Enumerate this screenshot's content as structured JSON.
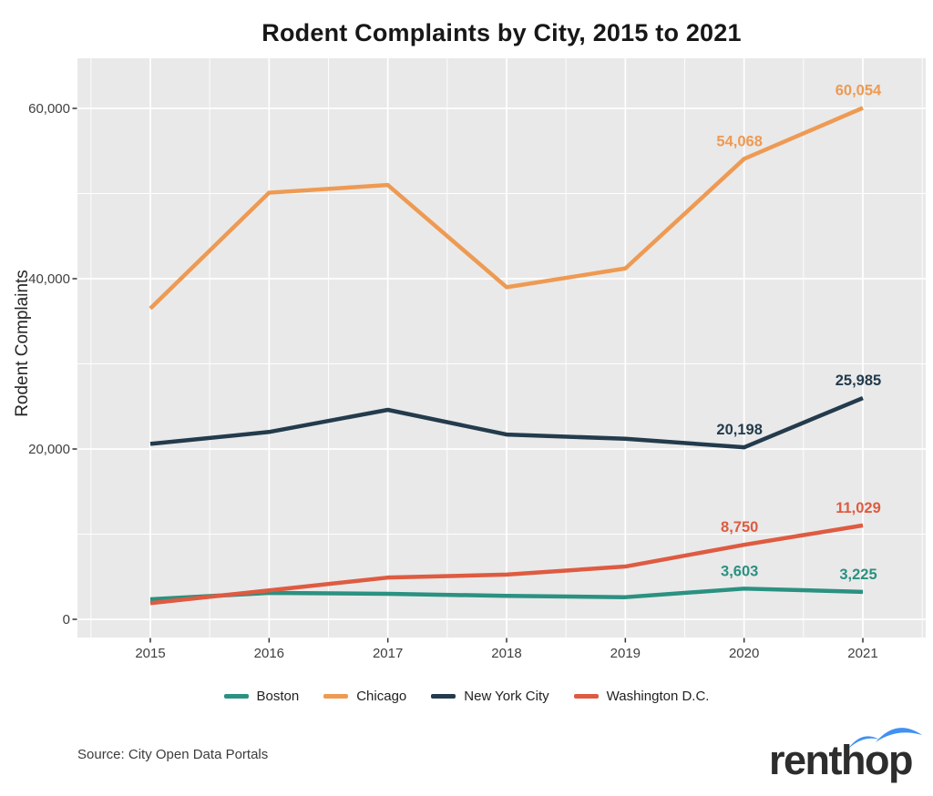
{
  "title": "Rodent Complaints by City, 2015 to 2021",
  "source": "Source: City Open Data Portals",
  "logo": {
    "text": "renthop"
  },
  "colors": {
    "panel_bg": "#E9E9E9",
    "grid": "#FFFFFF",
    "axis_text": "#404040",
    "tick_mark": "#333333",
    "title_text": "#171717",
    "source_text": "#3C3C3C",
    "logo_text": "#2D2D2D",
    "logo_swoosh": "#4191F1"
  },
  "chart_data": {
    "type": "line",
    "title": "Rodent Complaints by City, 2015 to 2021",
    "xlabel": "",
    "ylabel": "Rodent Complaints",
    "x": [
      2015,
      2016,
      2017,
      2018,
      2019,
      2020,
      2021
    ],
    "x_tick_labels": [
      "2015",
      "2016",
      "2017",
      "2018",
      "2019",
      "2020",
      "2021"
    ],
    "y_ticks": [
      0,
      20000,
      40000,
      60000
    ],
    "y_tick_labels": [
      "0",
      "20,000",
      "40,000",
      "60,000"
    ],
    "y_minor_ticks": [
      10000,
      30000,
      50000
    ],
    "ylim": [
      -2100,
      65900
    ],
    "grid": "white major and minor gridlines on light gray panel",
    "legend_position": "bottom-center",
    "series": [
      {
        "name": "Boston",
        "slug": "boston",
        "color": "#2B9181",
        "values": [
          2350,
          3100,
          3000,
          2750,
          2600,
          3603,
          3225
        ],
        "point_labels": [
          {
            "x": 2020,
            "label": "3,603"
          },
          {
            "x": 2021,
            "label": "3,225"
          }
        ]
      },
      {
        "name": "Chicago",
        "slug": "chicago",
        "color": "#EE9A53",
        "values": [
          36500,
          50100,
          51000,
          39000,
          41200,
          54068,
          60054
        ],
        "point_labels": [
          {
            "x": 2020,
            "label": "54,068"
          },
          {
            "x": 2021,
            "label": "60,054"
          }
        ]
      },
      {
        "name": "New York City",
        "slug": "new-york-city",
        "color": "#233B4C",
        "values": [
          20600,
          22000,
          24600,
          21700,
          21200,
          20198,
          25985
        ],
        "point_labels": [
          {
            "x": 2020,
            "label": "20,198"
          },
          {
            "x": 2021,
            "label": "25,985"
          }
        ]
      },
      {
        "name": "Washington D.C.",
        "slug": "washington-dc",
        "color": "#DE5B41",
        "values": [
          1900,
          3400,
          4900,
          5250,
          6200,
          8750,
          11029
        ],
        "point_labels": [
          {
            "x": 2020,
            "label": "8,750"
          },
          {
            "x": 2021,
            "label": "11,029"
          }
        ]
      }
    ]
  }
}
